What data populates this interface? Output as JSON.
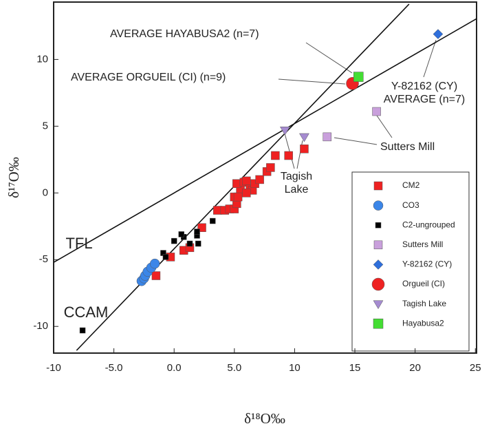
{
  "chart_data": {
    "type": "scatter",
    "xlabel": "δ¹⁸O‰",
    "ylabel": "δ¹⁷O‰",
    "xlim": [
      -10,
      25.1
    ],
    "ylim": [
      -12,
      14.3
    ],
    "xticks": [
      -10,
      {
        "value": -5,
        "label": "-5.0"
      },
      {
        "value": 0,
        "label": "0.0"
      },
      {
        "value": 5,
        "label": "5.0"
      },
      10,
      15,
      20,
      25
    ],
    "yticks": [
      -10,
      -5,
      0,
      5,
      10
    ],
    "lines": [
      {
        "label": "TFL",
        "x": [
          -10,
          25.1
        ],
        "y": [
          -5.2,
          13.05
        ]
      },
      {
        "label": "CCAM",
        "x": [
          -8.1,
          19.5
        ],
        "y": [
          -11.8,
          14.15
        ]
      }
    ],
    "series": [
      {
        "name": "CM2",
        "color": "#ee2222",
        "marker": "square",
        "size": 12,
        "x": [
          -1.5,
          -0.3,
          0.8,
          1.3,
          2.3,
          3.6,
          4.2,
          4.6,
          5.0,
          5.2,
          5.0,
          5.5,
          5.2,
          5.8,
          6.0,
          6.3,
          6.5,
          6.7,
          7.1,
          7.7,
          8.0,
          8.4,
          9.5,
          10.8,
          6.0,
          5.3
        ],
        "values": [
          -6.2,
          -4.8,
          -4.3,
          -4.1,
          -2.6,
          -1.3,
          -1.3,
          -1.2,
          -1.2,
          -0.8,
          -0.3,
          0.2,
          0.7,
          0.8,
          0.9,
          0.3,
          0.2,
          0.7,
          1.0,
          1.6,
          1.9,
          2.8,
          2.8,
          3.3,
          0.0,
          -0.3
        ]
      },
      {
        "name": "CO3",
        "color": "#3b86e8",
        "marker": "circle",
        "size": 14,
        "x": [
          -2.7,
          -2.5,
          -2.4,
          -2.2,
          -1.9,
          -1.6
        ],
        "values": [
          -6.6,
          -6.4,
          -6.2,
          -5.9,
          -5.6,
          -5.3
        ]
      },
      {
        "name": "C2-ungrouped",
        "color": "#000000",
        "marker": "square",
        "size": 8,
        "x": [
          -7.6,
          -0.9,
          -0.7,
          0.0,
          0.8,
          0.6,
          1.3,
          1.9,
          2.0,
          1.9,
          3.2
        ],
        "values": [
          -10.3,
          -4.5,
          -4.8,
          -3.6,
          -3.3,
          -3.1,
          -3.8,
          -3.2,
          -3.8,
          -2.9,
          -2.1
        ]
      },
      {
        "name": "Sutters Mill",
        "color": "#c9a0dc",
        "marker": "square",
        "size": 12,
        "x": [
          12.7,
          16.8
        ],
        "values": [
          4.2,
          6.1
        ]
      },
      {
        "name": "Y-82162 (CY)",
        "color": "#2f6fdb",
        "marker": "diamond",
        "size": 14,
        "x": [
          21.9
        ],
        "values": [
          11.9
        ]
      },
      {
        "name": "Orgueil (CI)",
        "color": "#ee2222",
        "marker": "circle",
        "size": 18,
        "x": [
          14.8
        ],
        "values": [
          8.2
        ]
      },
      {
        "name": "Tagish Lake",
        "color": "#a58bd0",
        "marker": "triangle",
        "size": 14,
        "x": [
          9.2,
          10.8
        ],
        "values": [
          4.7,
          4.2
        ]
      },
      {
        "name": "Hayabusa2",
        "color": "#44dd33",
        "marker": "square",
        "size": 14,
        "x": [
          15.3
        ],
        "values": [
          8.7
        ]
      }
    ],
    "annotations": [
      {
        "lines": [
          "AVERAGE HAYABUSA2 (n=7)"
        ]
      },
      {
        "lines": [
          "AVERAGE ORGUEIL (CI) (n=9)"
        ]
      },
      {
        "lines": [
          "Y-82162 (CY)",
          "AVERAGE (n=7)"
        ]
      },
      {
        "lines": [
          "Sutters Mill"
        ]
      },
      {
        "lines": [
          "Tagish",
          "Lake"
        ]
      }
    ]
  }
}
